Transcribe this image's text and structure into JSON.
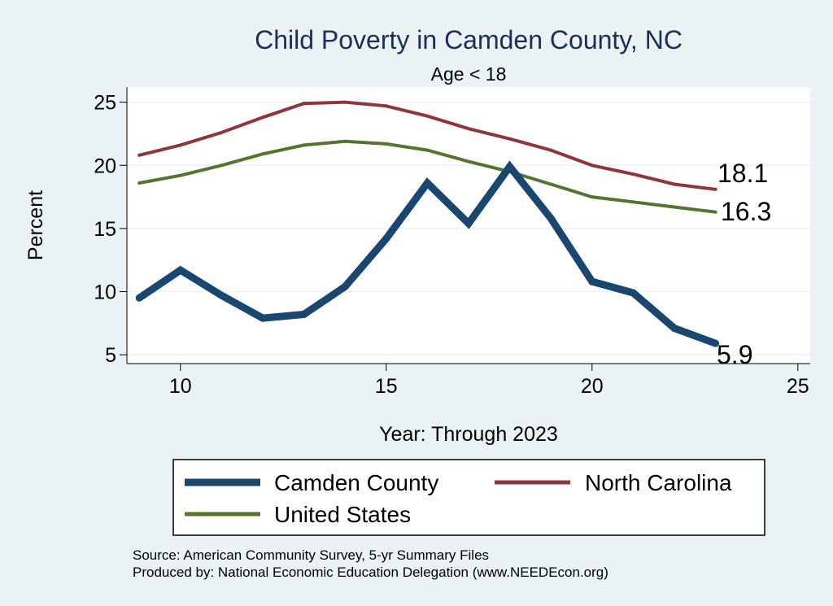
{
  "chart_data": {
    "type": "line",
    "title": "Child Poverty in Camden County, NC",
    "subtitle": "Age < 18",
    "xlabel": "Year: Through 2023",
    "ylabel": "Percent",
    "xlim": [
      8.7,
      25.3
    ],
    "ylim": [
      4.3,
      26.2
    ],
    "xticks": [
      10,
      15,
      20,
      25
    ],
    "yticks": [
      5,
      10,
      15,
      20,
      25
    ],
    "x": [
      9,
      10,
      11,
      12,
      13,
      14,
      15,
      16,
      17,
      18,
      19,
      20,
      21,
      22,
      23
    ],
    "series": [
      {
        "name": "Camden County",
        "color": "#1a476f",
        "values": [
          9.5,
          11.7,
          9.7,
          7.9,
          8.2,
          10.4,
          14.2,
          18.6,
          15.4,
          19.9,
          15.8,
          10.8,
          9.9,
          7.1,
          5.9
        ],
        "end_label": "5.9"
      },
      {
        "name": "North Carolina",
        "color": "#90353b",
        "values": [
          20.8,
          21.6,
          22.6,
          23.8,
          24.9,
          25.0,
          24.7,
          23.9,
          22.9,
          22.1,
          21.2,
          20.0,
          19.3,
          18.5,
          18.1
        ],
        "end_label": "18.1"
      },
      {
        "name": "United States",
        "color": "#55752f",
        "values": [
          18.6,
          19.2,
          20.0,
          20.9,
          21.6,
          21.9,
          21.7,
          21.2,
          20.3,
          19.5,
          18.5,
          17.5,
          17.1,
          16.7,
          16.3
        ],
        "end_label": "16.3"
      }
    ],
    "legend": [
      "Camden County",
      "North Carolina",
      "United States"
    ],
    "legend_position": "bottom",
    "source_lines": [
      "Source: American Community Survey, 5-yr Summary Files",
      "Produced by: National Economic Education Delegation (www.NEEDEcon.org)"
    ]
  }
}
